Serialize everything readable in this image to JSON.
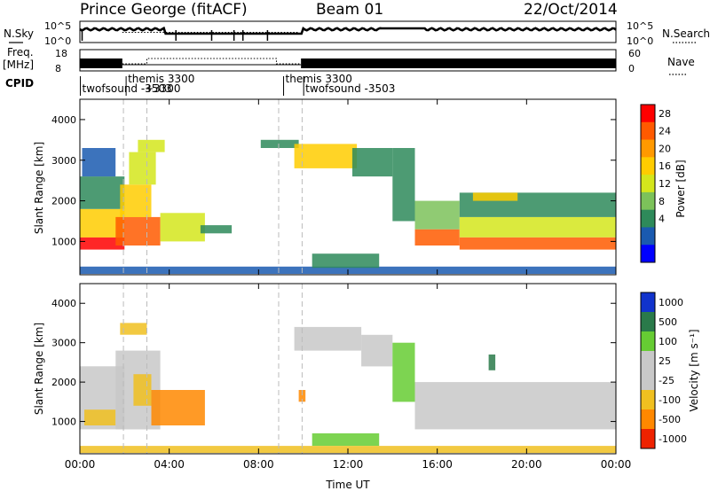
{
  "header": {
    "station": "Prince George (fitACF)",
    "beam": "Beam 01",
    "date": "22/Oct/2014"
  },
  "strips": {
    "nsky_label": "N.Sky",
    "nsearch_label": "N.Search",
    "noise_ticks": [
      "10^5",
      "10^0"
    ],
    "noise_ticks_right": [
      "10^5",
      "10^0"
    ],
    "freq_label": "Freq.",
    "freq_unit": "[MHz]",
    "freq_ticks": [
      "18",
      "8"
    ],
    "nave_label": "Nave",
    "nave_ticks": [
      "60",
      "0"
    ],
    "cpid_label": "CPID",
    "cpid_entries": [
      {
        "text": "themis 3300",
        "row": 0,
        "hour": 2.15
      },
      {
        "text": "themis 3300",
        "row": 0,
        "hour": 9.2
      },
      {
        "text": "twofsound -3503",
        "row": 1,
        "hour": 0.1
      },
      {
        "text": "twofsound -3503",
        "row": 1,
        "hour": 10.1
      }
    ],
    "cpid_overlap_text": "+3300"
  },
  "panels": {
    "power": {
      "ylabel": "Slant Range [km]",
      "cbar_label": "Power [dB]",
      "cbar_ticks": [
        "28",
        "24",
        "20",
        "16",
        "12",
        "8",
        "4"
      ]
    },
    "velocity": {
      "ylabel": "Slant Range [km]",
      "cbar_label": "Velocity [m s⁻¹]",
      "cbar_ticks": [
        "1000",
        "500",
        "100",
        "25",
        "-25",
        "-100",
        "-500",
        "-1000"
      ]
    }
  },
  "xaxis": {
    "label": "Time UT",
    "ticks": [
      "00:00",
      "04:00",
      "08:00",
      "12:00",
      "16:00",
      "20:00",
      "00:00"
    ]
  },
  "colors": {
    "power_scale": [
      "#ff0000",
      "#ff5a00",
      "#ff9900",
      "#ffcc00",
      "#d4e61c",
      "#7cc25a",
      "#2e8a5a",
      "#1a5ab0",
      "#0000ff"
    ],
    "velocity_scale": [
      "#1133cc",
      "#2a7a4a",
      "#66cc33",
      "#c8c8c8",
      "#c8c8c8",
      "#f0c020",
      "#ff8800",
      "#ee2200"
    ]
  },
  "chart_data": [
    {
      "type": "heatmap",
      "title": "Power",
      "xlabel": "Time UT",
      "ylabel": "Slant Range [km]",
      "xlim": [
        0,
        24
      ],
      "ylim": [
        180,
        4500
      ],
      "clim": [
        0,
        30
      ],
      "colorbar_label": "Power [dB]",
      "yticks": [
        1000,
        2000,
        3000,
        4000
      ],
      "regions": [
        {
          "t0": 0.0,
          "t1": 2.0,
          "r0": 800,
          "r1": 1100,
          "value": 27
        },
        {
          "t0": 0.0,
          "t1": 2.0,
          "r0": 1100,
          "r1": 1800,
          "value": 18
        },
        {
          "t0": 0.0,
          "t1": 2.0,
          "r0": 1800,
          "r1": 2600,
          "value": 9
        },
        {
          "t0": 0.1,
          "t1": 1.6,
          "r0": 2600,
          "r1": 3300,
          "value": 6
        },
        {
          "t0": 1.6,
          "t1": 3.6,
          "r0": 900,
          "r1": 1600,
          "value": 26
        },
        {
          "t0": 1.8,
          "t1": 3.2,
          "r0": 1600,
          "r1": 2400,
          "value": 20
        },
        {
          "t0": 2.2,
          "t1": 3.4,
          "r0": 2400,
          "r1": 3200,
          "value": 14
        },
        {
          "t0": 2.6,
          "t1": 3.8,
          "r0": 3200,
          "r1": 3500,
          "value": 15
        },
        {
          "t0": 3.6,
          "t1": 5.6,
          "r0": 1000,
          "r1": 1700,
          "value": 16
        },
        {
          "t0": 5.4,
          "t1": 6.8,
          "r0": 1200,
          "r1": 1400,
          "value": 8
        },
        {
          "t0": 8.1,
          "t1": 9.8,
          "r0": 3300,
          "r1": 3500,
          "value": 7
        },
        {
          "t0": 9.6,
          "t1": 12.4,
          "r0": 2800,
          "r1": 3400,
          "value": 17
        },
        {
          "t0": 12.2,
          "t1": 14.0,
          "r0": 2600,
          "r1": 3300,
          "value": 9
        },
        {
          "t0": 14.0,
          "t1": 15.0,
          "r0": 1500,
          "r1": 3300,
          "value": 8
        },
        {
          "t0": 15.0,
          "t1": 17.0,
          "r0": 900,
          "r1": 1300,
          "value": 24
        },
        {
          "t0": 15.0,
          "t1": 17.0,
          "r0": 1300,
          "r1": 2000,
          "value": 12
        },
        {
          "t0": 17.0,
          "t1": 24.0,
          "r0": 800,
          "r1": 1100,
          "value": 26
        },
        {
          "t0": 17.0,
          "t1": 24.0,
          "r0": 1100,
          "r1": 1600,
          "value": 16
        },
        {
          "t0": 17.0,
          "t1": 24.0,
          "r0": 1600,
          "r1": 2200,
          "value": 9
        },
        {
          "t0": 17.6,
          "t1": 19.6,
          "r0": 2000,
          "r1": 2200,
          "value": 19
        },
        {
          "t0": 0.0,
          "t1": 24.0,
          "r0": 200,
          "r1": 380,
          "value": 6
        },
        {
          "t0": 10.4,
          "t1": 13.4,
          "r0": 350,
          "r1": 700,
          "value": 10
        }
      ]
    },
    {
      "type": "heatmap",
      "title": "Velocity",
      "xlabel": "Time UT",
      "ylabel": "Slant Range [km]",
      "xlim": [
        0,
        24
      ],
      "ylim": [
        180,
        4500
      ],
      "clim": [
        -1000,
        1000
      ],
      "colorbar_label": "Velocity [m s⁻¹]",
      "yticks": [
        1000,
        2000,
        3000,
        4000
      ],
      "regions": [
        {
          "t0": 0.0,
          "t1": 2.0,
          "r0": 800,
          "r1": 2400,
          "value": 0
        },
        {
          "t0": 0.2,
          "t1": 1.6,
          "r0": 900,
          "r1": 1300,
          "value": -150
        },
        {
          "t0": 1.6,
          "t1": 3.6,
          "r0": 800,
          "r1": 2800,
          "value": 0
        },
        {
          "t0": 2.4,
          "t1": 3.2,
          "r0": 1400,
          "r1": 2200,
          "value": -120
        },
        {
          "t0": 3.2,
          "t1": 5.6,
          "r0": 900,
          "r1": 1800,
          "value": -400
        },
        {
          "t0": 1.8,
          "t1": 3.0,
          "r0": 3200,
          "r1": 3500,
          "value": -60
        },
        {
          "t0": 9.6,
          "t1": 12.6,
          "r0": 2800,
          "r1": 3400,
          "value": 0
        },
        {
          "t0": 12.6,
          "t1": 14.0,
          "r0": 2400,
          "r1": 3200,
          "value": 0
        },
        {
          "t0": 14.0,
          "t1": 15.0,
          "r0": 1500,
          "r1": 3000,
          "value": 150
        },
        {
          "t0": 15.0,
          "t1": 24.0,
          "r0": 800,
          "r1": 2000,
          "value": 0
        },
        {
          "t0": 9.8,
          "t1": 10.1,
          "r0": 1500,
          "r1": 1800,
          "value": -300
        },
        {
          "t0": 10.4,
          "t1": 13.4,
          "r0": 380,
          "r1": 700,
          "value": 200
        },
        {
          "t0": 18.3,
          "t1": 18.6,
          "r0": 2300,
          "r1": 2700,
          "value": 600
        },
        {
          "t0": 0.0,
          "t1": 24.0,
          "r0": 200,
          "r1": 380,
          "value": -60
        }
      ]
    }
  ]
}
